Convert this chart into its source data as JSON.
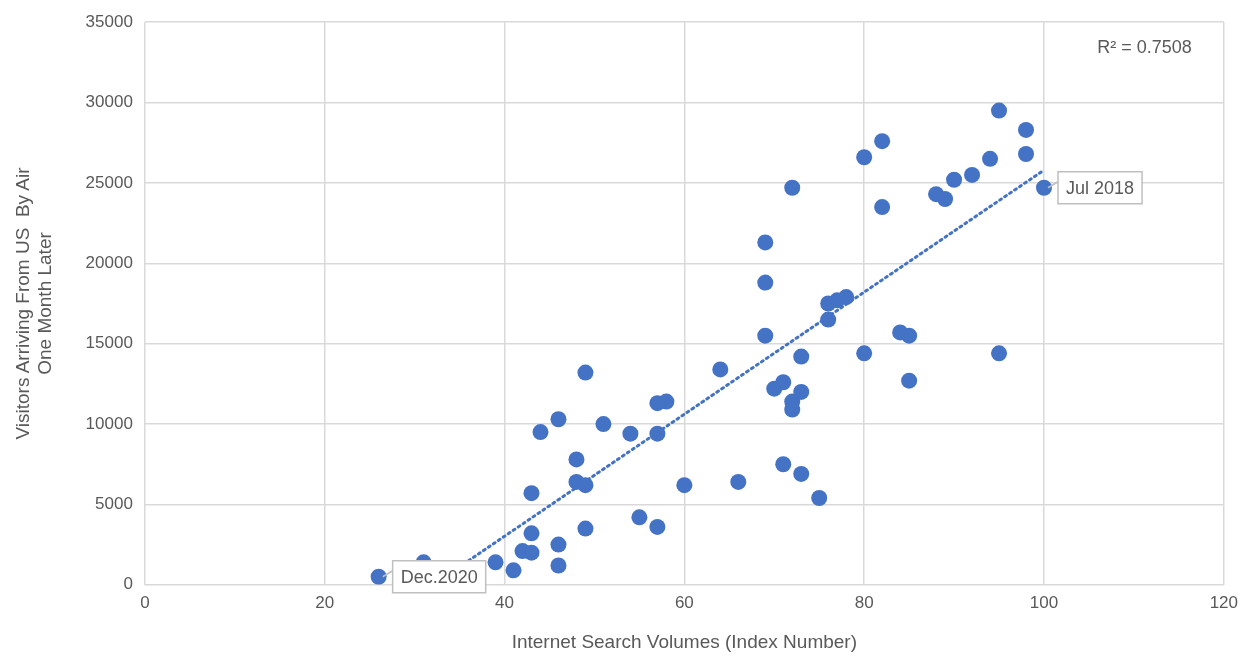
{
  "chart_data": {
    "type": "scatter",
    "xlabel": "Internet Search Volumes (Index Number)",
    "ylabel": "Visitors Arriving From US  By Air\nOne Month Later",
    "xlim": [
      0,
      120
    ],
    "xticks": [
      0,
      20,
      40,
      60,
      80,
      100,
      120
    ],
    "ylim": [
      0,
      35000
    ],
    "yticks": [
      0,
      5000,
      10000,
      15000,
      20000,
      25000,
      30000,
      35000
    ],
    "grid": true,
    "legend": false,
    "marker": "circle",
    "series": [
      {
        "color": "#4472c4",
        "x": [
          26,
          31,
          39,
          41,
          42,
          43,
          43,
          43,
          46,
          46,
          44,
          46,
          48,
          48,
          49,
          49,
          49,
          51,
          54,
          55,
          57,
          57,
          57,
          58,
          60,
          64,
          66,
          69,
          69,
          69,
          71,
          70,
          71,
          72,
          72,
          72,
          73,
          73,
          73,
          75,
          76,
          76,
          77,
          78,
          80,
          80,
          82,
          82,
          84,
          85,
          85,
          88,
          89,
          90,
          92,
          94,
          95,
          95,
          98,
          98,
          100
        ],
        "values": [
          500,
          1400,
          1400,
          900,
          2100,
          2000,
          3200,
          5700,
          1200,
          2500,
          9500,
          10300,
          7800,
          6400,
          6200,
          3500,
          13200,
          10000,
          9400,
          4200,
          3600,
          9400,
          11300,
          11400,
          6200,
          13400,
          6400,
          21300,
          18800,
          15500,
          7500,
          12200,
          12600,
          11400,
          10900,
          24700,
          6900,
          12000,
          14200,
          5400,
          16500,
          17500,
          17700,
          17900,
          26600,
          14400,
          27600,
          23500,
          15700,
          15500,
          12700,
          24300,
          24000,
          25200,
          25500,
          26500,
          29500,
          14400,
          28300,
          26800,
          24700
        ]
      },
      {
        "type": "line",
        "color": "#4472c4",
        "line_style": "dotted",
        "marker": "none",
        "x": [
          36,
          100
        ],
        "values": [
          1500,
          25800
        ]
      }
    ],
    "annotations": [
      "R² = 0.7508",
      {
        "text": "Dec.2020",
        "x": 26,
        "y": 500
      },
      {
        "text": "Jul 2018",
        "x": 100,
        "y": 24700
      }
    ]
  }
}
